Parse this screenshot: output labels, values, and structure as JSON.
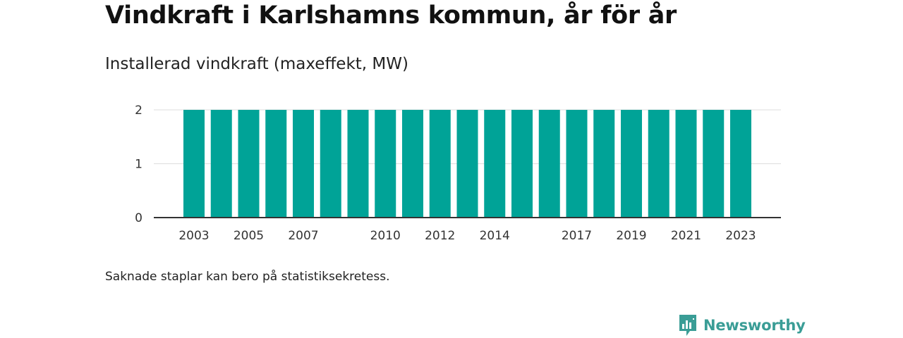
{
  "title": "Vindkraft i Karlshamns kommun, år för år",
  "subtitle": "Installerad vindkraft (maxeffekt, MW)",
  "footnote": "Saknade staplar kan bero på statistiksekretess.",
  "brand": {
    "name": "Newsworthy",
    "icon": "newsworthy-logo-icon",
    "color": "#3a9d96"
  },
  "chart_data": {
    "type": "bar",
    "categories": [
      "2003",
      "2004",
      "2005",
      "2006",
      "2007",
      "2008",
      "2009",
      "2010",
      "2011",
      "2012",
      "2013",
      "2014",
      "2015",
      "2016",
      "2017",
      "2018",
      "2019",
      "2020",
      "2021",
      "2022",
      "2023"
    ],
    "values": [
      2,
      2,
      2,
      2,
      2,
      2,
      2,
      2,
      2,
      2,
      2,
      2,
      2,
      2,
      2,
      2,
      2,
      2,
      2,
      2,
      2
    ],
    "x_tick_labels": [
      "2003",
      "2005",
      "2007",
      "2010",
      "2012",
      "2014",
      "2017",
      "2019",
      "2021",
      "2023"
    ],
    "y_ticks": [
      0,
      1,
      2
    ],
    "ylim": [
      0,
      2
    ],
    "bar_color": "#00a397",
    "grid": true,
    "title": "Vindkraft i Karlshamns kommun, år för år",
    "ylabel": "Installerad vindkraft (maxeffekt, MW)",
    "xlabel": ""
  }
}
